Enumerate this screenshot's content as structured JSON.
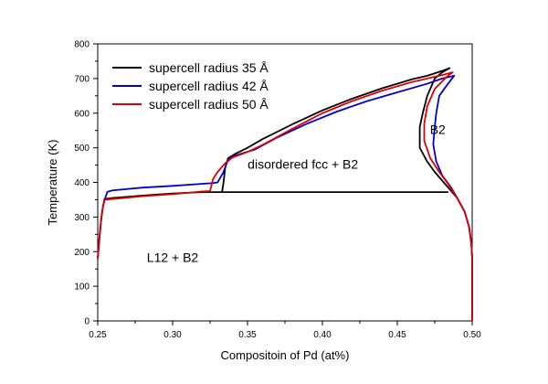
{
  "chart_data": {
    "type": "line",
    "xlabel": "Compositoin of Pd (at%)",
    "ylabel": "Temperature (K)",
    "xlim": [
      0.25,
      0.5
    ],
    "ylim": [
      0,
      800
    ],
    "xticks": [
      0.25,
      0.3,
      0.35,
      0.4,
      0.45,
      0.5
    ],
    "xtick_labels": [
      "0.25",
      "0.30",
      "0.35",
      "0.40",
      "0.45",
      "0.50"
    ],
    "yticks": [
      0,
      100,
      200,
      300,
      400,
      500,
      600,
      700,
      800
    ],
    "ytick_labels": [
      "0",
      "100",
      "200",
      "300",
      "400",
      "500",
      "600",
      "700",
      "800"
    ],
    "grid": false,
    "legend_position": "top-left",
    "series": [
      {
        "name": "supercell radius 35 Å",
        "color": "#000000",
        "segments": [
          [
            [
              0.25,
              180
            ],
            [
              0.2515,
              260
            ],
            [
              0.2525,
              300
            ],
            [
              0.2535,
              330
            ],
            [
              0.2545,
              352
            ],
            [
              0.26,
              355
            ],
            [
              0.28,
              362
            ],
            [
              0.3,
              368
            ],
            [
              0.32,
              372
            ],
            [
              0.333,
              372
            ],
            [
              0.334,
              400
            ],
            [
              0.335,
              440
            ],
            [
              0.337,
              470
            ],
            [
              0.342,
              483
            ],
            [
              0.35,
              500
            ],
            [
              0.36,
              525
            ],
            [
              0.38,
              568
            ],
            [
              0.4,
              608
            ],
            [
              0.42,
              642
            ],
            [
              0.44,
              672
            ],
            [
              0.46,
              698
            ],
            [
              0.47,
              708
            ],
            [
              0.48,
              722
            ],
            [
              0.485,
              730
            ],
            [
              0.48,
              718
            ],
            [
              0.475,
              700
            ],
            [
              0.47,
              650
            ],
            [
              0.467,
              600
            ],
            [
              0.465,
              560
            ],
            [
              0.465,
              500
            ],
            [
              0.47,
              460
            ],
            [
              0.475,
              430
            ],
            [
              0.48,
              405
            ],
            [
              0.485,
              380
            ],
            [
              0.49,
              355
            ],
            [
              0.495,
              315
            ],
            [
              0.498,
              270
            ],
            [
              0.4995,
              220
            ],
            [
              0.5,
              180
            ],
            [
              0.5,
              0
            ]
          ],
          [
            [
              0.333,
              372
            ],
            [
              0.484,
              372
            ]
          ]
        ]
      },
      {
        "name": "supercell radius 42 Å",
        "color": "#0000cc",
        "segments": [
          [
            [
              0.25,
              180
            ],
            [
              0.2515,
              255
            ],
            [
              0.2525,
              300
            ],
            [
              0.2535,
              330
            ],
            [
              0.255,
              355
            ],
            [
              0.2565,
              373
            ],
            [
              0.26,
              377
            ],
            [
              0.28,
              385
            ],
            [
              0.3,
              390
            ],
            [
              0.32,
              396
            ],
            [
              0.327,
              398
            ],
            [
              0.33,
              400
            ],
            [
              0.334,
              430
            ],
            [
              0.336,
              455
            ],
            [
              0.338,
              470
            ],
            [
              0.342,
              478
            ],
            [
              0.355,
              495
            ],
            [
              0.37,
              530
            ],
            [
              0.39,
              570
            ],
            [
              0.41,
              605
            ],
            [
              0.43,
              635
            ],
            [
              0.45,
              660
            ],
            [
              0.47,
              685
            ],
            [
              0.48,
              700
            ],
            [
              0.488,
              708
            ],
            [
              0.483,
              680
            ],
            [
              0.478,
              650
            ],
            [
              0.476,
              600
            ],
            [
              0.475,
              560
            ],
            [
              0.474,
              510
            ],
            [
              0.476,
              460
            ],
            [
              0.48,
              420
            ],
            [
              0.486,
              385
            ],
            [
              0.49,
              355
            ],
            [
              0.495,
              315
            ],
            [
              0.498,
              270
            ],
            [
              0.4995,
              220
            ],
            [
              0.5,
              180
            ],
            [
              0.5,
              0
            ]
          ]
        ]
      },
      {
        "name": "supercell radius 50 Å",
        "color": "#dd0000",
        "segments": [
          [
            [
              0.25,
              180
            ],
            [
              0.2515,
              258
            ],
            [
              0.2525,
              300
            ],
            [
              0.2535,
              332
            ],
            [
              0.2545,
              350
            ],
            [
              0.26,
              352
            ],
            [
              0.28,
              360
            ],
            [
              0.3,
              366
            ],
            [
              0.32,
              374
            ],
            [
              0.325,
              375
            ],
            [
              0.327,
              410
            ],
            [
              0.33,
              430
            ],
            [
              0.335,
              455
            ],
            [
              0.34,
              472
            ],
            [
              0.35,
              488
            ],
            [
              0.36,
              508
            ],
            [
              0.38,
              555
            ],
            [
              0.4,
              600
            ],
            [
              0.42,
              635
            ],
            [
              0.44,
              665
            ],
            [
              0.46,
              690
            ],
            [
              0.48,
              710
            ],
            [
              0.487,
              718
            ],
            [
              0.483,
              705
            ],
            [
              0.475,
              670
            ],
            [
              0.47,
              620
            ],
            [
              0.468,
              570
            ],
            [
              0.468,
              520
            ],
            [
              0.472,
              470
            ],
            [
              0.478,
              430
            ],
            [
              0.484,
              395
            ],
            [
              0.49,
              355
            ],
            [
              0.495,
              315
            ],
            [
              0.498,
              270
            ],
            [
              0.4995,
              220
            ],
            [
              0.5,
              180
            ],
            [
              0.5,
              0
            ]
          ]
        ]
      }
    ],
    "annotations": [
      {
        "text": "disordered fcc + B2",
        "x": 0.387,
        "y": 440
      },
      {
        "text": "L12 + B2",
        "x": 0.3,
        "y": 170
      },
      {
        "text": "B2",
        "x": 0.477,
        "y": 540
      }
    ]
  }
}
